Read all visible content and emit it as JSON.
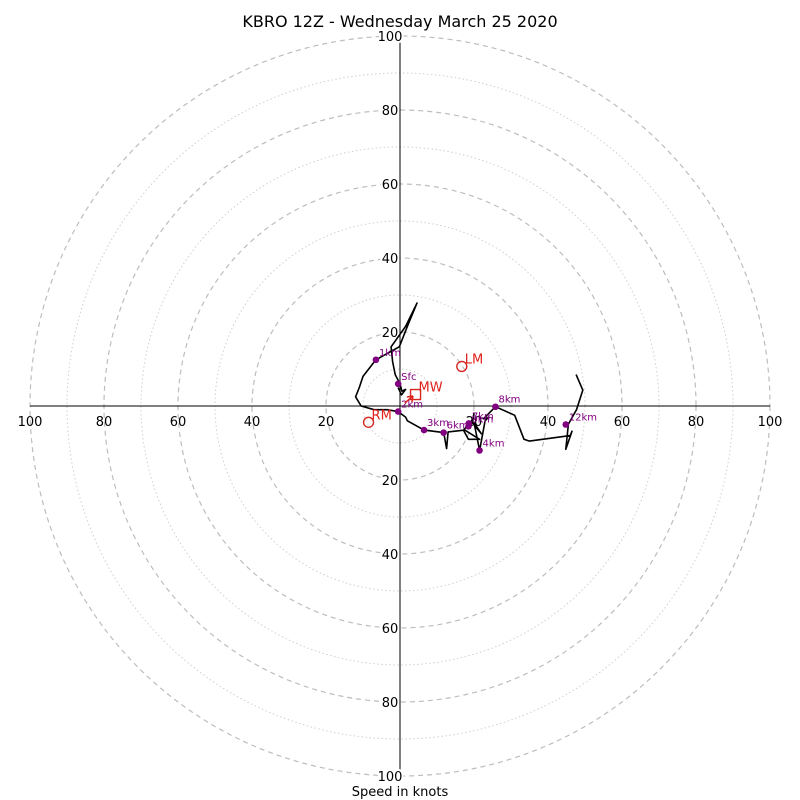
{
  "chart_data": {
    "type": "hodograph",
    "title": "KBRO 12Z - Wednesday March 25 2020",
    "xlabel": "Speed in knots",
    "range": [
      -100,
      100
    ],
    "major_rings": [
      20,
      40,
      60,
      80,
      100
    ],
    "minor_rings": [
      10,
      30,
      50,
      70,
      90
    ],
    "x_tick_values": [
      -100,
      -80,
      -60,
      -40,
      -20,
      20,
      40,
      60,
      80,
      100
    ],
    "x_tick_labels": [
      "100",
      "80",
      "60",
      "40",
      "20",
      "20",
      "40",
      "60",
      "80",
      "100"
    ],
    "y_tick_values": [
      100,
      80,
      60,
      40,
      20,
      -20,
      -40,
      -60,
      -80,
      -100
    ],
    "y_tick_labels": [
      "100",
      "80",
      "60",
      "40",
      "20",
      "20",
      "40",
      "60",
      "80",
      "100"
    ],
    "trace": [
      [
        -0.5,
        5
      ],
      [
        0.4,
        3
      ],
      [
        1.5,
        4.5
      ],
      [
        0.5,
        4
      ],
      [
        0,
        6
      ],
      [
        -1.3,
        8.5
      ],
      [
        -2,
        12
      ],
      [
        -2.4,
        16
      ],
      [
        1.5,
        21.5
      ],
      [
        4.6,
        27.8
      ],
      [
        2.2,
        22
      ],
      [
        -0.2,
        16
      ],
      [
        -6.5,
        12.5
      ],
      [
        -10,
        8
      ],
      [
        -11,
        5
      ],
      [
        -12,
        2.5
      ],
      [
        -10.5,
        0
      ],
      [
        -7,
        -1
      ],
      [
        -3.5,
        -1
      ],
      [
        -0.5,
        -1.5
      ],
      [
        1.5,
        -3
      ],
      [
        2,
        -4
      ],
      [
        6.5,
        -6.5
      ],
      [
        11.8,
        -7.2
      ],
      [
        12.6,
        -11.5
      ],
      [
        13,
        -7
      ],
      [
        17.5,
        -6.5
      ],
      [
        21.5,
        -9
      ],
      [
        18.5,
        -9
      ],
      [
        17.2,
        -6.6
      ],
      [
        18.6,
        -4.7
      ],
      [
        19.6,
        -4.4
      ],
      [
        20,
        -2
      ],
      [
        19.5,
        -4.5
      ],
      [
        22,
        -7.5
      ],
      [
        20,
        -4.5
      ],
      [
        21.5,
        -12
      ],
      [
        23,
        -4
      ],
      [
        24,
        -3
      ],
      [
        22.5,
        -3.5
      ],
      [
        25.8,
        -0.2
      ],
      [
        31,
        -2.5
      ],
      [
        33.5,
        -9
      ],
      [
        35,
        -9.5
      ],
      [
        46,
        -8
      ],
      [
        46.5,
        -6.8
      ],
      [
        44.8,
        -11.7
      ],
      [
        45.5,
        -4.9
      ],
      [
        47.7,
        -1
      ],
      [
        49.4,
        4.3
      ],
      [
        47.6,
        8.5
      ]
    ],
    "height_points": [
      {
        "label": "Sfc",
        "u": -0.5,
        "v": 6
      },
      {
        "label": "1km",
        "u": -6.5,
        "v": 12.5
      },
      {
        "label": "2km",
        "u": -0.5,
        "v": -1.5
      },
      {
        "label": "3km",
        "u": 6.5,
        "v": -6.5
      },
      {
        "label": "4km",
        "u": 21.5,
        "v": -12
      },
      {
        "label": "6km",
        "u": 11.8,
        "v": -7.2
      },
      {
        "label": "7km",
        "u": 18.6,
        "v": -4.7
      },
      {
        "label": "8km",
        "u": 25.8,
        "v": -0.2
      },
      {
        "label": "9km",
        "u": 18.5,
        "v": -5.5
      },
      {
        "label": "12km",
        "u": 44.8,
        "v": -5
      }
    ],
    "storm_motions": [
      {
        "label": "LM",
        "u": 16.7,
        "v": 10.7,
        "marker": "circle"
      },
      {
        "label": "RM",
        "u": -8.5,
        "v": -4.4,
        "marker": "circle"
      },
      {
        "label": "MW",
        "u": 4.2,
        "v": 3.1,
        "marker": "square"
      }
    ],
    "motion_arrow": {
      "from": [
        1.3,
        0.8
      ],
      "to": [
        3.5,
        2.7
      ]
    },
    "colors": {
      "trace": "#000000",
      "height_points": "#800080",
      "storm_motion": "#d62720",
      "rings": "#bdbdbd"
    },
    "grid": true,
    "legend": "none"
  }
}
